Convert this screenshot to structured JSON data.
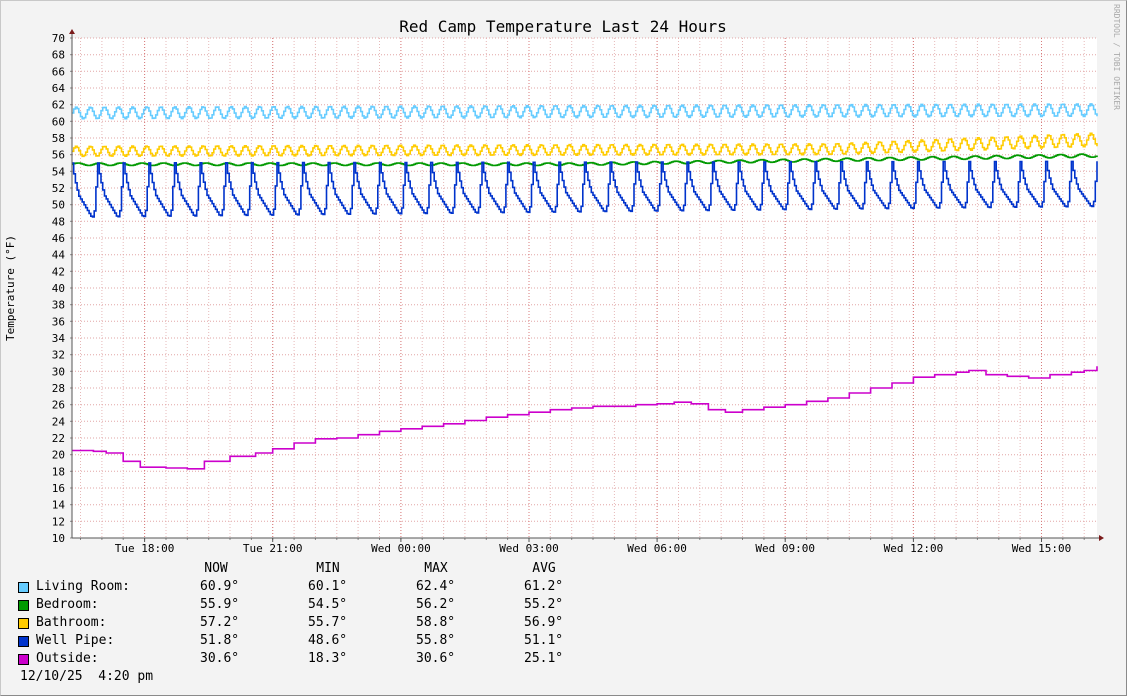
{
  "chart_data": {
    "type": "line",
    "title": "Red Camp Temperature Last 24 Hours",
    "ylabel": "Temperature (°F)",
    "xlabel": "",
    "watermark": "RRDTOOL / TOBI OETIKER",
    "ylim": [
      10,
      70
    ],
    "y_ticks": [
      10,
      12,
      14,
      16,
      18,
      20,
      22,
      24,
      26,
      28,
      30,
      32,
      34,
      36,
      38,
      40,
      42,
      44,
      46,
      48,
      50,
      52,
      54,
      56,
      58,
      60,
      62,
      64,
      66,
      68,
      70
    ],
    "x_range_hours": [
      16.3,
      40.3
    ],
    "x_ticks": [
      {
        "hour": 18,
        "label": "Tue 18:00"
      },
      {
        "hour": 21,
        "label": "Tue 21:00"
      },
      {
        "hour": 24,
        "label": "Wed 00:00"
      },
      {
        "hour": 27,
        "label": "Wed 03:00"
      },
      {
        "hour": 30,
        "label": "Wed 06:00"
      },
      {
        "hour": 33,
        "label": "Wed 09:00"
      },
      {
        "hour": 36,
        "label": "Wed 12:00"
      },
      {
        "hour": 39,
        "label": "Wed 15:00"
      }
    ],
    "grid": true,
    "legend_position": "bottom",
    "series": [
      {
        "name": "Living Room",
        "color": "#66ccff",
        "pattern": "oscillating",
        "period_hours": 0.33,
        "low_trend": [
          [
            16.3,
            60.3
          ],
          [
            40.3,
            60.6
          ]
        ],
        "high_trend": [
          [
            16.3,
            61.7
          ],
          [
            40.3,
            62.1
          ]
        ]
      },
      {
        "name": "Bedroom",
        "color": "#009900",
        "pattern": "oscillating",
        "period_hours": 0.5,
        "low_trend": [
          [
            16.3,
            54.7
          ],
          [
            28,
            54.7
          ],
          [
            40.3,
            55.7
          ]
        ],
        "high_trend": [
          [
            16.3,
            55.0
          ],
          [
            28,
            55.0
          ],
          [
            40.3,
            56.1
          ]
        ]
      },
      {
        "name": "Bathroom",
        "color": "#ffcc00",
        "pattern": "oscillating",
        "period_hours": 0.33,
        "low_trend": [
          [
            16.3,
            55.8
          ],
          [
            34,
            56.0
          ],
          [
            40.3,
            57.0
          ]
        ],
        "high_trend": [
          [
            16.3,
            57.0
          ],
          [
            34,
            57.3
          ],
          [
            40.3,
            58.6
          ]
        ]
      },
      {
        "name": "Well Pipe",
        "color": "#0033cc",
        "pattern": "pump-cycle",
        "period_hours": 0.6,
        "low_trend": [
          [
            16.3,
            48.5
          ],
          [
            40.3,
            49.8
          ]
        ],
        "high_trend": [
          [
            16.3,
            55.0
          ],
          [
            40.3,
            55.2
          ]
        ]
      },
      {
        "name": "Outside",
        "color": "#cc00cc",
        "pattern": "step",
        "points": [
          [
            16.3,
            20.5
          ],
          [
            16.8,
            20.4
          ],
          [
            17.1,
            20.2
          ],
          [
            17.5,
            19.2
          ],
          [
            17.9,
            18.5
          ],
          [
            18.5,
            18.4
          ],
          [
            19.0,
            18.3
          ],
          [
            19.4,
            19.2
          ],
          [
            20.0,
            19.8
          ],
          [
            20.6,
            20.2
          ],
          [
            21.0,
            20.7
          ],
          [
            21.5,
            21.4
          ],
          [
            22.0,
            21.9
          ],
          [
            22.5,
            22.0
          ],
          [
            23.0,
            22.4
          ],
          [
            23.5,
            22.8
          ],
          [
            24.0,
            23.1
          ],
          [
            24.5,
            23.4
          ],
          [
            25.0,
            23.7
          ],
          [
            25.5,
            24.1
          ],
          [
            26.0,
            24.5
          ],
          [
            26.5,
            24.8
          ],
          [
            27.0,
            25.1
          ],
          [
            27.5,
            25.4
          ],
          [
            28.0,
            25.6
          ],
          [
            28.5,
            25.8
          ],
          [
            29.0,
            25.8
          ],
          [
            29.5,
            26.0
          ],
          [
            30.0,
            26.1
          ],
          [
            30.4,
            26.3
          ],
          [
            30.8,
            26.1
          ],
          [
            31.2,
            25.4
          ],
          [
            31.6,
            25.1
          ],
          [
            32.0,
            25.4
          ],
          [
            32.5,
            25.7
          ],
          [
            33.0,
            26.0
          ],
          [
            33.5,
            26.4
          ],
          [
            34.0,
            26.8
          ],
          [
            34.5,
            27.4
          ],
          [
            35.0,
            28.0
          ],
          [
            35.5,
            28.6
          ],
          [
            36.0,
            29.3
          ],
          [
            36.5,
            29.6
          ],
          [
            37.0,
            29.9
          ],
          [
            37.3,
            30.1
          ],
          [
            37.7,
            29.6
          ],
          [
            38.2,
            29.4
          ],
          [
            38.7,
            29.2
          ],
          [
            39.2,
            29.6
          ],
          [
            39.7,
            29.9
          ],
          [
            40.0,
            30.1
          ],
          [
            40.3,
            30.6
          ]
        ]
      }
    ]
  },
  "legend": {
    "headers": [
      "NOW",
      "MIN",
      "MAX",
      "AVG"
    ],
    "rows": [
      {
        "label": "Living Room:",
        "now": "60.9°",
        "min": "60.1°",
        "max": "62.4°",
        "avg": "61.2°",
        "color": "#66ccff"
      },
      {
        "label": "Bedroom:",
        "now": "55.9°",
        "min": "54.5°",
        "max": "56.2°",
        "avg": "55.2°",
        "color": "#009900"
      },
      {
        "label": "Bathroom:",
        "now": "57.2°",
        "min": "55.7°",
        "max": "58.8°",
        "avg": "56.9°",
        "color": "#ffcc00"
      },
      {
        "label": "Well Pipe:",
        "now": "51.8°",
        "min": "48.6°",
        "max": "55.8°",
        "avg": "51.1°",
        "color": "#0033cc"
      },
      {
        "label": "Outside:",
        "now": "30.6°",
        "min": "18.3°",
        "max": "30.6°",
        "avg": "25.1°",
        "color": "#cc00cc"
      }
    ]
  },
  "timestamp": "12/10/25  4:20 pm"
}
